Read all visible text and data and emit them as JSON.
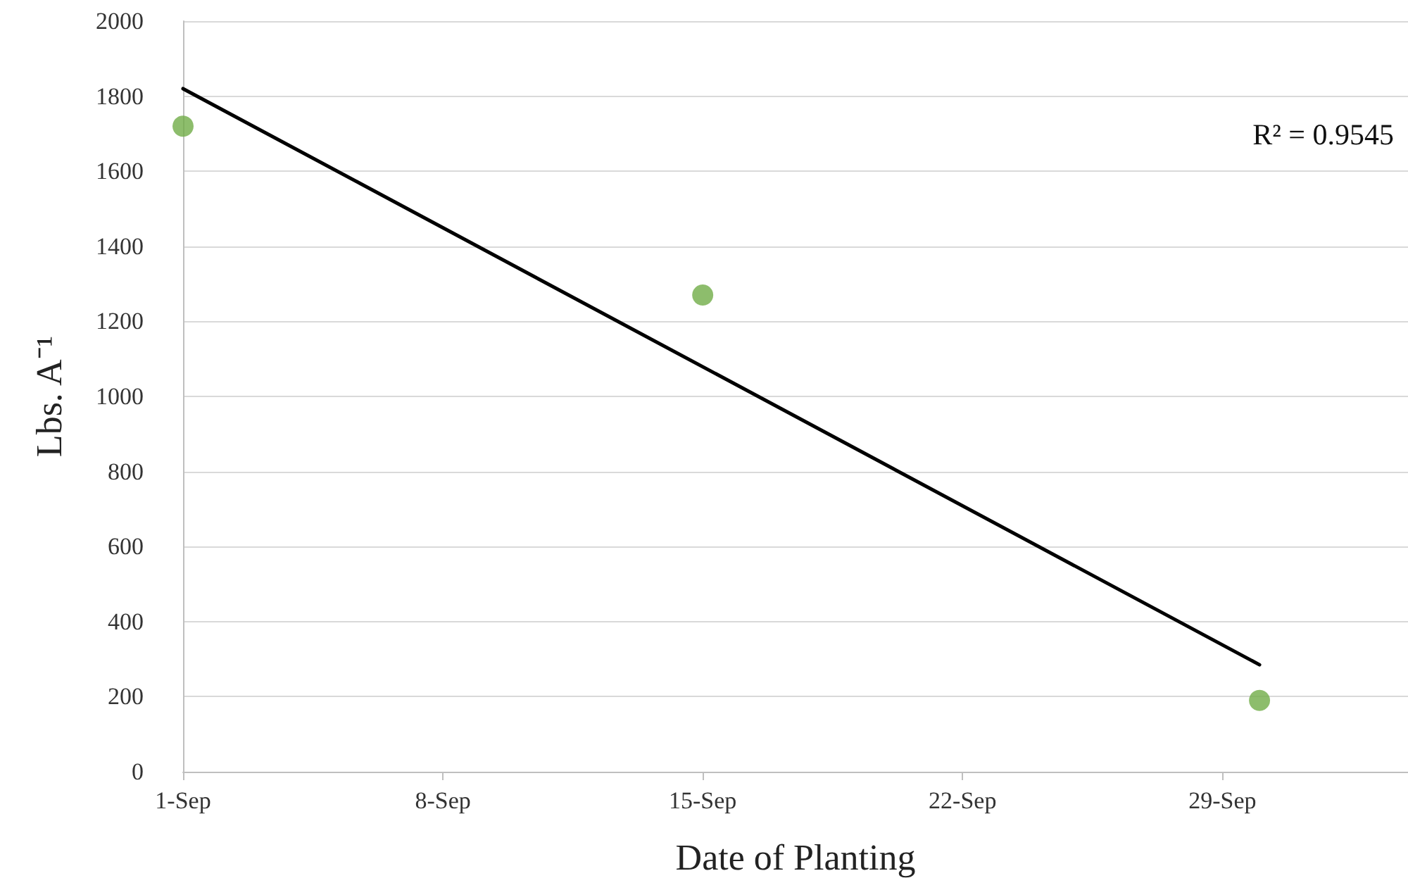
{
  "chart_data": {
    "type": "scatter",
    "xlabel": "Date of Planting",
    "ylabel": "Lbs. A⁻¹",
    "x": [
      "--09-01",
      "--09-15",
      "--09-30"
    ],
    "series": [
      {
        "color": "#70ad47",
        "marker": "circle",
        "values": [
          1720,
          1270,
          190
        ]
      },
      {
        "type": "line",
        "color": "#000000",
        "marker": "none",
        "line_style": "solid",
        "x": [
          "--09-01",
          "--09-30"
        ],
        "values": [
          1820,
          285
        ]
      }
    ],
    "xlim": [
      "--09-01",
      "--10-04"
    ],
    "xticks": [
      {
        "value": "--09-01",
        "label": "1-Sep"
      },
      {
        "value": "--09-08",
        "label": "8-Sep"
      },
      {
        "value": "--09-15",
        "label": "15-Sep"
      },
      {
        "value": "--09-22",
        "label": "22-Sep"
      },
      {
        "value": "--09-29",
        "label": "29-Sep"
      }
    ],
    "ylim": [
      0,
      2000
    ],
    "yticks": [
      0,
      200,
      400,
      600,
      800,
      1000,
      1200,
      1400,
      1600,
      1800,
      2000
    ],
    "grid": "y",
    "annotations": [
      "R² = 0.9545"
    ]
  }
}
